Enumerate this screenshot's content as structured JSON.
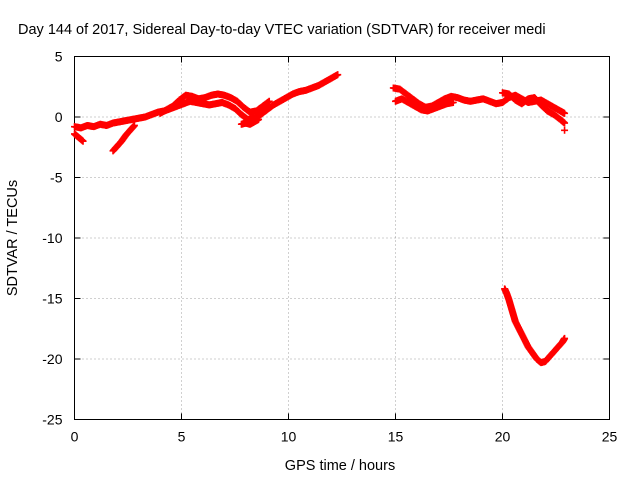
{
  "chart_data": {
    "type": "scatter",
    "title": "Day 144 of 2017, Sidereal Day-to-day VTEC variation (SDTVAR) for receiver medi",
    "xlabel": "GPS time / hours",
    "ylabel": "SDTVAR / TECUs",
    "xlim": [
      0,
      25
    ],
    "ylim": [
      -25,
      5
    ],
    "xticks": [
      0,
      5,
      10,
      15,
      20,
      25
    ],
    "yticks": [
      5,
      0,
      -5,
      -10,
      -15,
      -20,
      -25
    ],
    "grid": true,
    "marker": "plus",
    "series": [
      {
        "name": "SDTVAR",
        "color": "#ff0000",
        "segments": [
          {
            "points": [
              [
                0.0,
                -0.8
              ],
              [
                0.3,
                -0.9
              ],
              [
                0.6,
                -0.7
              ],
              [
                0.9,
                -0.8
              ],
              [
                1.2,
                -0.6
              ],
              [
                1.5,
                -0.7
              ],
              [
                1.8,
                -0.5
              ],
              [
                2.1,
                -0.4
              ],
              [
                2.4,
                -0.3
              ],
              [
                2.7,
                -0.2
              ],
              [
                3.0,
                -0.1
              ],
              [
                3.3,
                0.0
              ],
              [
                3.6,
                0.2
              ],
              [
                3.9,
                0.4
              ],
              [
                4.2,
                0.5
              ],
              [
                4.5,
                0.7
              ],
              [
                4.8,
                0.9
              ],
              [
                5.1,
                1.1
              ],
              [
                5.4,
                1.3
              ],
              [
                5.7,
                1.2
              ],
              [
                6.0,
                1.1
              ],
              [
                6.3,
                1.0
              ],
              [
                6.6,
                1.1
              ],
              [
                6.9,
                1.2
              ],
              [
                7.2,
                1.0
              ],
              [
                7.5,
                0.7
              ],
              [
                7.8,
                0.2
              ],
              [
                8.1,
                -0.2
              ],
              [
                8.4,
                -0.1
              ],
              [
                8.7,
                0.2
              ],
              [
                9.0,
                0.6
              ],
              [
                9.3,
                1.0
              ],
              [
                9.6,
                1.3
              ],
              [
                9.9,
                1.6
              ],
              [
                10.2,
                1.9
              ],
              [
                10.5,
                2.1
              ],
              [
                10.8,
                2.2
              ],
              [
                11.1,
                2.4
              ],
              [
                11.4,
                2.6
              ],
              [
                11.7,
                2.9
              ],
              [
                12.0,
                3.2
              ],
              [
                12.3,
                3.5
              ]
            ]
          },
          {
            "points": [
              [
                0.0,
                -1.4
              ],
              [
                0.2,
                -1.7
              ],
              [
                0.4,
                -2.0
              ]
            ]
          },
          {
            "points": [
              [
                1.8,
                -2.8
              ],
              [
                2.0,
                -2.4
              ],
              [
                2.2,
                -2.0
              ],
              [
                2.4,
                -1.5
              ],
              [
                2.6,
                -1.1
              ],
              [
                2.8,
                -0.7
              ]
            ]
          },
          {
            "points": [
              [
                4.0,
                0.3
              ],
              [
                4.3,
                0.6
              ],
              [
                4.6,
                0.9
              ],
              [
                4.9,
                1.4
              ],
              [
                5.2,
                1.8
              ],
              [
                5.5,
                1.7
              ],
              [
                5.8,
                1.5
              ],
              [
                6.1,
                1.6
              ],
              [
                6.4,
                1.8
              ],
              [
                6.7,
                1.9
              ],
              [
                7.0,
                1.8
              ],
              [
                7.3,
                1.6
              ],
              [
                7.6,
                1.3
              ],
              [
                7.9,
                0.8
              ],
              [
                8.2,
                0.4
              ],
              [
                8.5,
                0.5
              ],
              [
                8.8,
                0.9
              ],
              [
                9.1,
                1.3
              ]
            ]
          },
          {
            "points": [
              [
                7.8,
                -0.6
              ],
              [
                8.0,
                -0.5
              ],
              [
                8.2,
                -0.6
              ],
              [
                8.4,
                -0.4
              ],
              [
                8.6,
                -0.2
              ]
            ]
          },
          {
            "points": [
              [
                14.9,
                2.4
              ],
              [
                15.2,
                2.3
              ],
              [
                15.5,
                1.9
              ],
              [
                15.8,
                1.5
              ],
              [
                16.1,
                1.1
              ],
              [
                16.4,
                0.8
              ],
              [
                16.7,
                0.9
              ],
              [
                17.0,
                1.2
              ],
              [
                17.3,
                1.5
              ],
              [
                17.6,
                1.7
              ],
              [
                17.9,
                1.6
              ],
              [
                18.2,
                1.4
              ],
              [
                18.5,
                1.3
              ],
              [
                18.8,
                1.4
              ],
              [
                19.1,
                1.5
              ],
              [
                19.4,
                1.3
              ],
              [
                19.7,
                1.1
              ],
              [
                20.0,
                1.2
              ],
              [
                20.3,
                1.6
              ],
              [
                20.6,
                1.8
              ],
              [
                20.9,
                1.5
              ],
              [
                21.2,
                1.2
              ],
              [
                21.5,
                1.3
              ],
              [
                21.8,
                1.4
              ],
              [
                22.1,
                1.1
              ],
              [
                22.4,
                0.8
              ],
              [
                22.7,
                0.5
              ],
              [
                22.9,
                0.3
              ]
            ]
          },
          {
            "points": [
              [
                15.0,
                1.3
              ],
              [
                15.3,
                1.5
              ],
              [
                15.6,
                1.2
              ],
              [
                15.9,
                0.9
              ],
              [
                16.2,
                0.6
              ],
              [
                16.5,
                0.5
              ],
              [
                16.8,
                0.7
              ],
              [
                17.1,
                0.9
              ],
              [
                17.4,
                1.1
              ],
              [
                17.7,
                1.2
              ]
            ]
          },
          {
            "points": [
              [
                20.0,
                2.0
              ],
              [
                20.3,
                1.9
              ],
              [
                20.6,
                1.4
              ],
              [
                20.9,
                1.1
              ],
              [
                21.2,
                1.5
              ],
              [
                21.5,
                1.6
              ],
              [
                21.8,
                1.0
              ],
              [
                22.1,
                0.5
              ],
              [
                22.4,
                0.2
              ],
              [
                22.7,
                -0.2
              ],
              [
                22.9,
                -0.5
              ]
            ]
          },
          {
            "points": [
              [
                22.9,
                -1.1
              ]
            ]
          },
          {
            "points": [
              [
                20.1,
                -14.2
              ],
              [
                20.2,
                -14.6
              ],
              [
                20.3,
                -15.1
              ],
              [
                20.4,
                -15.7
              ],
              [
                20.5,
                -16.3
              ],
              [
                20.6,
                -16.9
              ],
              [
                20.8,
                -17.6
              ],
              [
                21.0,
                -18.3
              ],
              [
                21.2,
                -19.0
              ],
              [
                21.4,
                -19.5
              ],
              [
                21.6,
                -20.0
              ],
              [
                21.8,
                -20.3
              ],
              [
                22.0,
                -20.2
              ],
              [
                22.2,
                -19.8
              ],
              [
                22.4,
                -19.4
              ],
              [
                22.6,
                -19.0
              ],
              [
                22.8,
                -18.6
              ],
              [
                22.9,
                -18.3
              ]
            ]
          }
        ]
      }
    ]
  }
}
